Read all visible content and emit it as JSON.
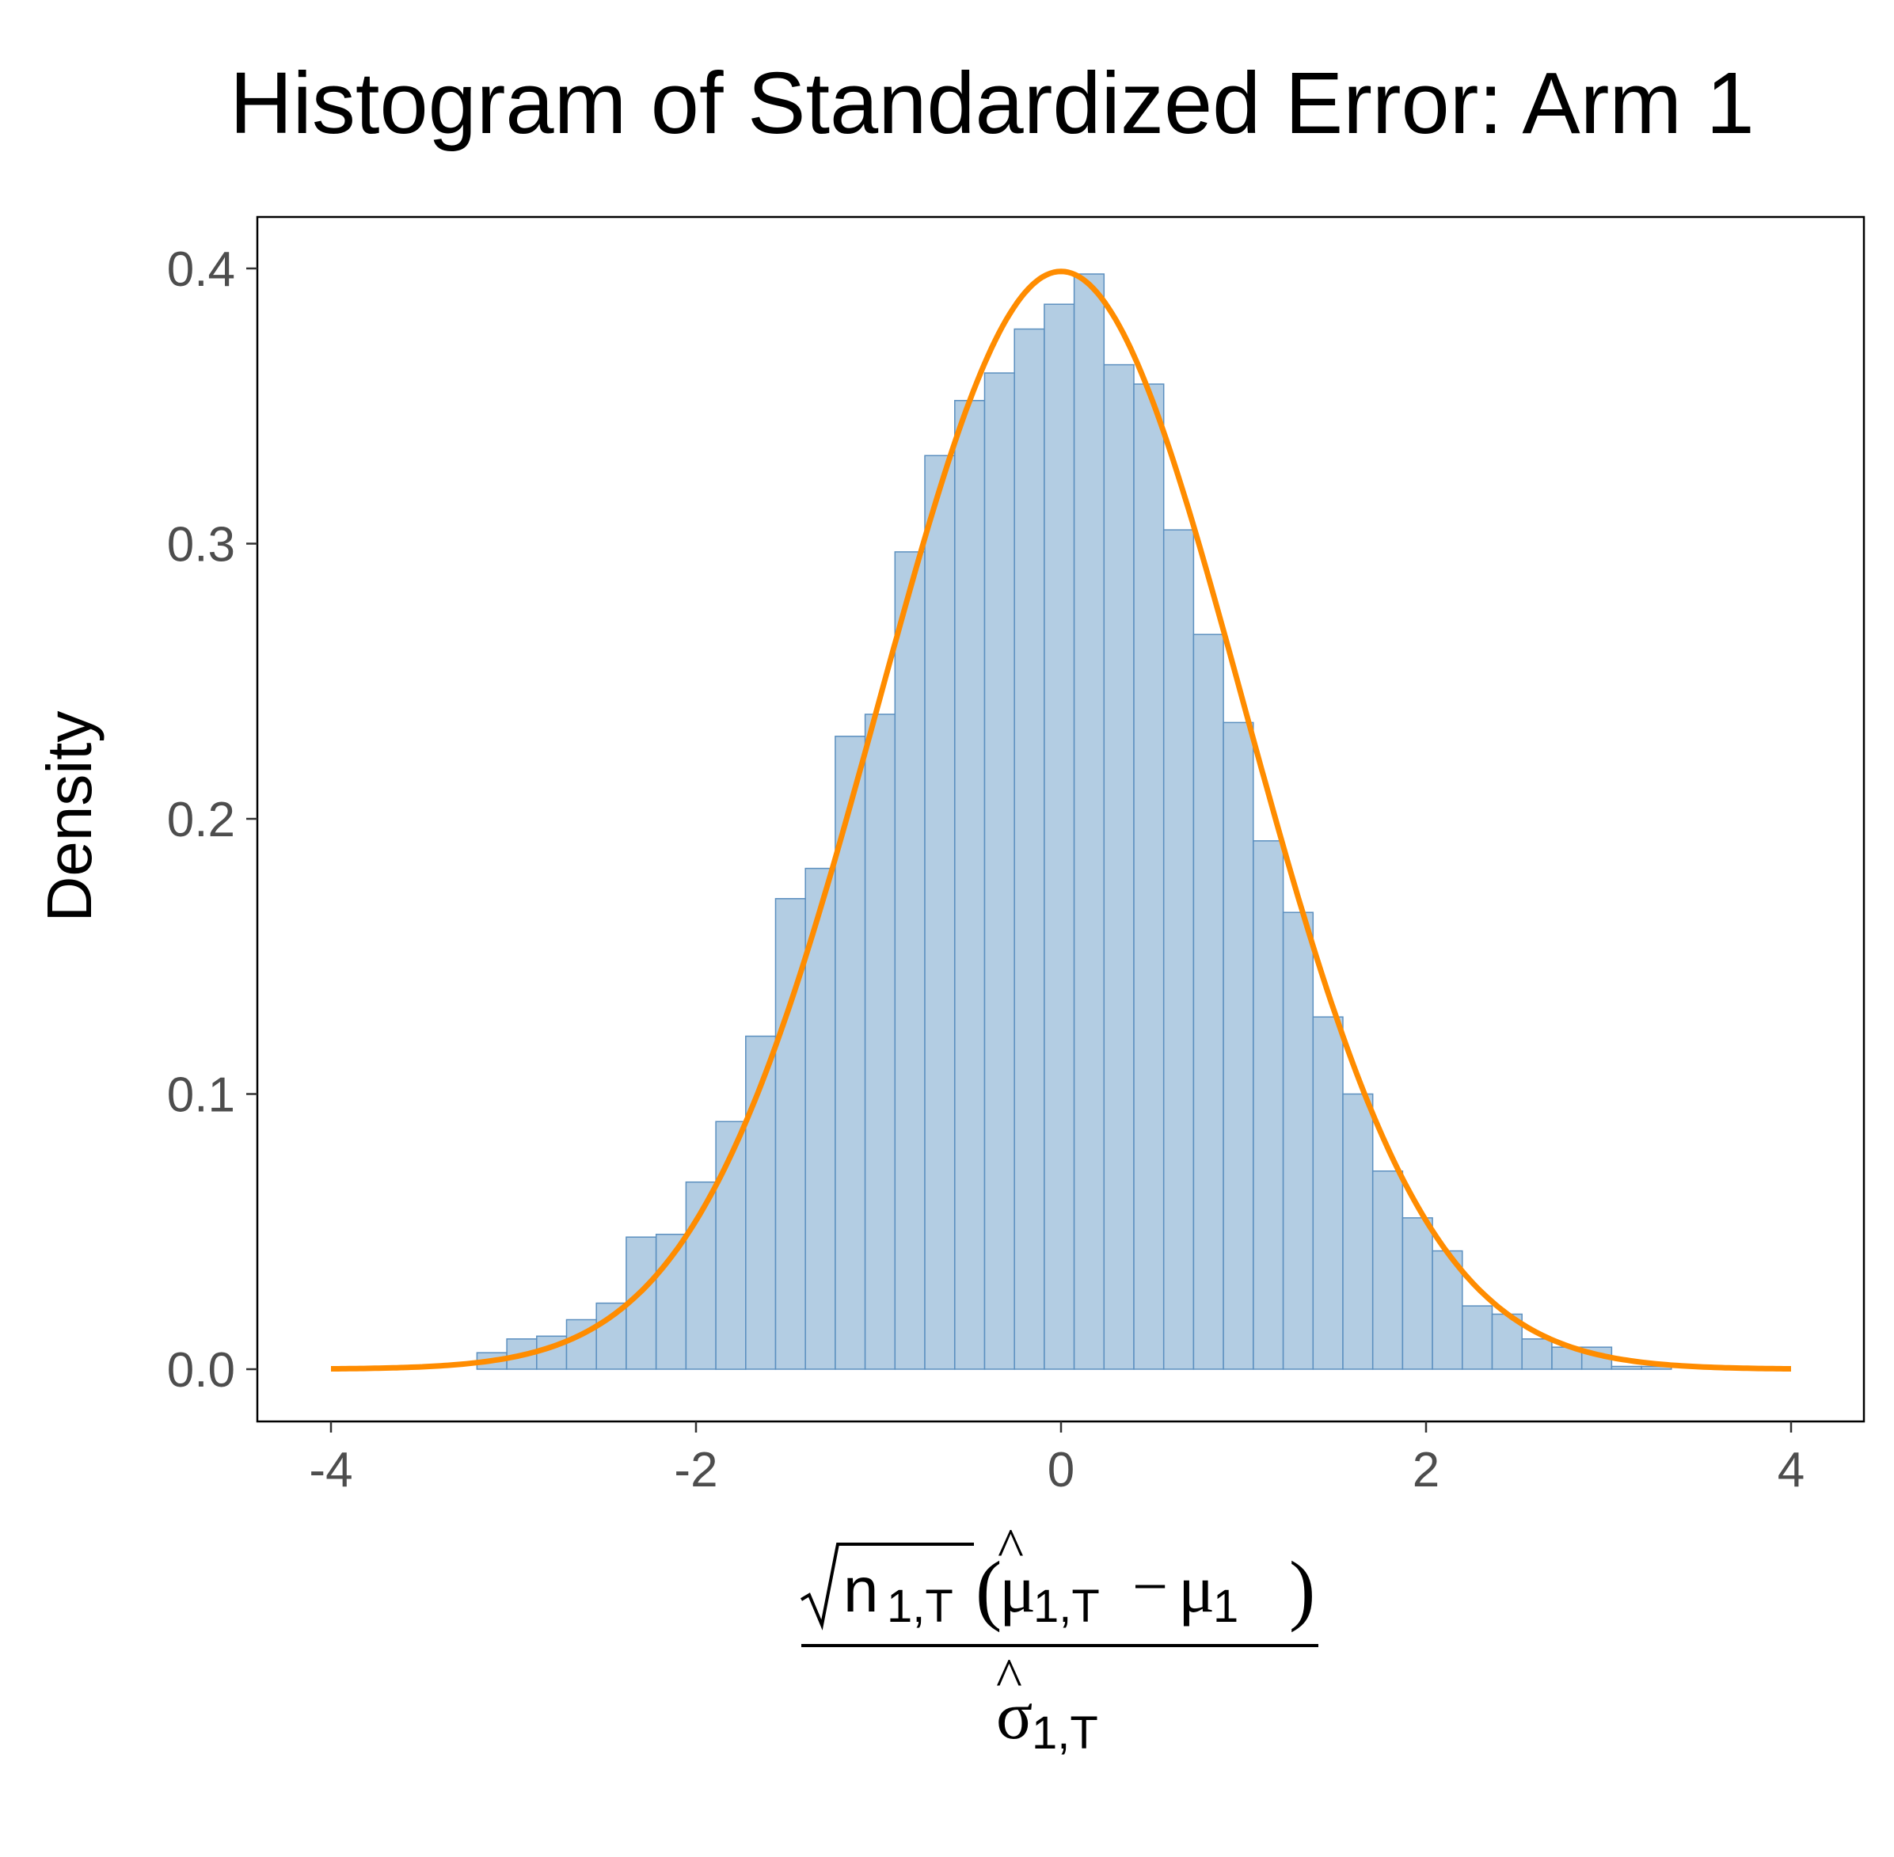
{
  "chart_data": {
    "type": "bar",
    "title": "Histogram of Standardized Error: Arm 1",
    "ylabel": "Density",
    "xlabel_formula": {
      "numerator": {
        "sqrt_base": "n",
        "sqrt_sub": "1,T",
        "open_paren": "(",
        "hat_symbol": "μ",
        "hat_sub": "1,T",
        "minus": "−",
        "true_symbol": "μ",
        "true_sub": "1",
        "close_paren": ")"
      },
      "denominator": {
        "hat_symbol": "σ",
        "hat_sub": "1,T"
      }
    },
    "xlim": [
      -4,
      4
    ],
    "ylim": [
      0,
      0.4
    ],
    "x_ticks": [
      -4,
      -2,
      0,
      2,
      4
    ],
    "x_tick_labels": [
      "-4",
      "-2",
      "0",
      "2",
      "4"
    ],
    "y_ticks": [
      0.0,
      0.1,
      0.2,
      0.3,
      0.4
    ],
    "y_tick_labels": [
      "0.0",
      "0.1",
      "0.2",
      "0.3",
      "0.4"
    ],
    "grid": false,
    "histogram": {
      "bin_width": 0.1636,
      "bin_edges_start": -3.2,
      "densities": [
        0.006,
        0.011,
        0.012,
        0.018,
        0.024,
        0.048,
        0.049,
        0.068,
        0.09,
        0.121,
        0.171,
        0.182,
        0.23,
        0.238,
        0.297,
        0.332,
        0.352,
        0.362,
        0.378,
        0.387,
        0.398,
        0.365,
        0.358,
        0.305,
        0.267,
        0.235,
        0.192,
        0.166,
        0.128,
        0.1,
        0.072,
        0.055,
        0.043,
        0.023,
        0.02,
        0.011,
        0.008,
        0.008,
        0.001,
        0.001
      ],
      "fill": "#b3cde3",
      "stroke": "#5b8fbf"
    },
    "curve": {
      "name": "Standard normal density",
      "color": "#ff8c00",
      "x_range": [
        -4,
        4
      ]
    }
  }
}
